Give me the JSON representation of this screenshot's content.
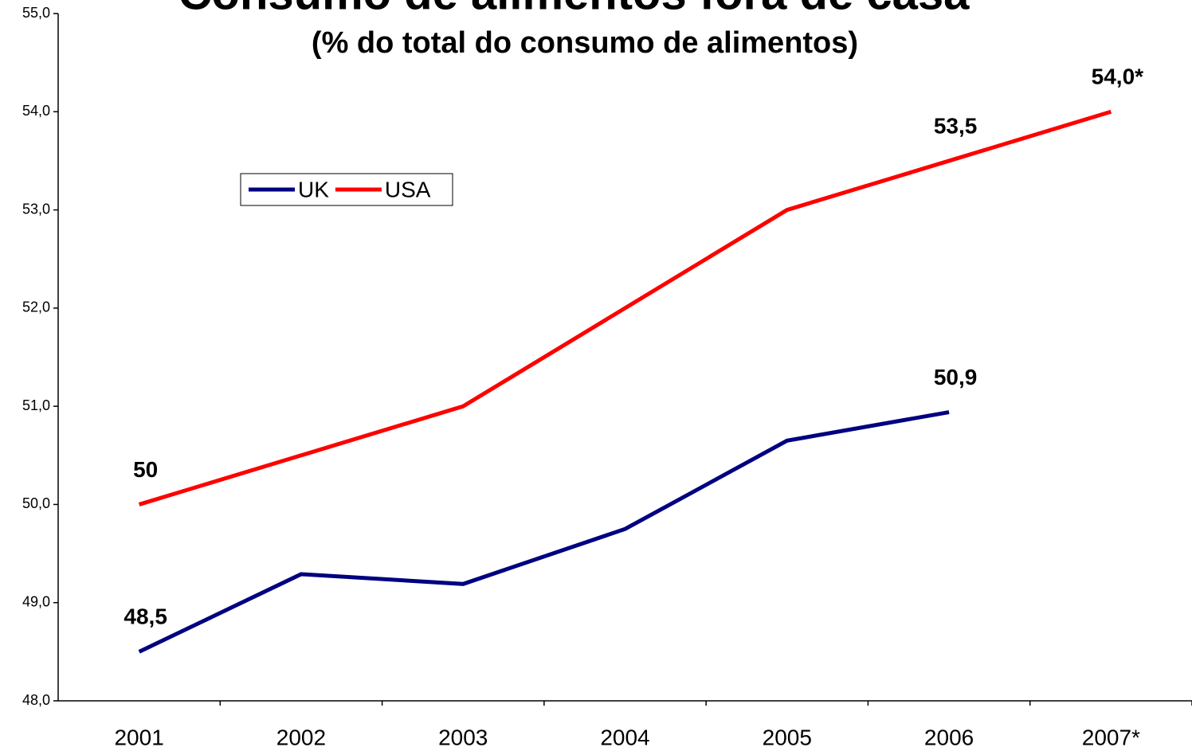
{
  "chart_data": {
    "type": "line",
    "title": "Consumo de alimentos fora de casa",
    "subtitle": "(% do total do consumo de alimentos)",
    "categories": [
      "2001",
      "2002",
      "2003",
      "2004",
      "2005",
      "2006",
      "2007*"
    ],
    "series": [
      {
        "name": "UK",
        "color": "#000080",
        "values": [
          48.5,
          49.29,
          49.19,
          49.75,
          50.65,
          50.94,
          null
        ],
        "value_labels": [
          "48,5",
          null,
          null,
          null,
          null,
          "50,9",
          null
        ]
      },
      {
        "name": "USA",
        "color": "#ff0000",
        "values": [
          50,
          50.5,
          51,
          52,
          53,
          53.5,
          54
        ],
        "value_labels": [
          "50",
          null,
          null,
          null,
          null,
          "53,5",
          "54,0*"
        ]
      }
    ],
    "ylim": [
      48,
      55
    ],
    "yticks": [
      {
        "value": 48,
        "label": "48,0"
      },
      {
        "value": 49,
        "label": "49,0"
      },
      {
        "value": 50,
        "label": "50,0"
      },
      {
        "value": 51,
        "label": "51,0"
      },
      {
        "value": 52,
        "label": "52,0"
      },
      {
        "value": 53,
        "label": "53,0"
      },
      {
        "value": 54,
        "label": "54,0"
      },
      {
        "value": 55,
        "label": "55,0"
      }
    ],
    "grid": false,
    "legend": "top-left"
  }
}
